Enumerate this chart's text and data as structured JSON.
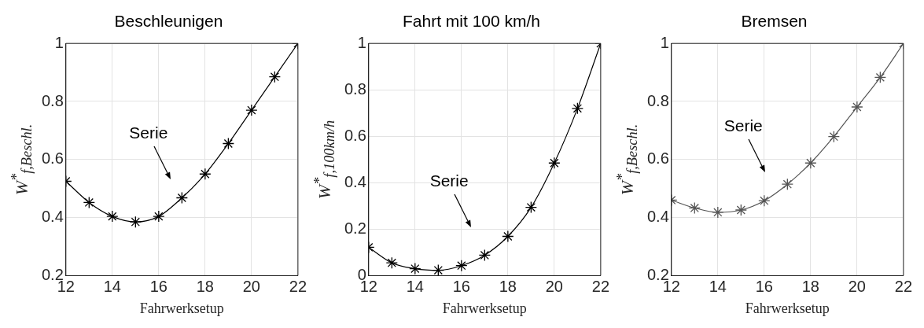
{
  "chart_data": [
    {
      "type": "line",
      "title": "Beschleunigen",
      "xlabel": "Fahrwerksetup",
      "ylabel": "W$^{*}$$_{f,Beschl.}$",
      "x": [
        12,
        13,
        14,
        15,
        16,
        17,
        18,
        19,
        20,
        21,
        22
      ],
      "series": [
        {
          "color": "#000000",
          "values": [
            0.525,
            0.452,
            0.404,
            0.385,
            0.404,
            0.468,
            0.55,
            0.655,
            0.77,
            0.885,
            1
          ]
        }
      ],
      "xlim": [
        12,
        22
      ],
      "xticks": [
        12,
        14,
        16,
        18,
        20,
        22
      ],
      "ylim": [
        0.2,
        1
      ],
      "yticks": [
        0.2,
        0.4,
        0.6,
        0.8,
        1
      ],
      "grid": true,
      "marker": "cross",
      "line_style": "solid",
      "annotations": [
        "Serie"
      ]
    },
    {
      "type": "line",
      "title": "Fahrt mit 100 km/h",
      "xlabel": "Fahrwerksetup",
      "ylabel": "W$^{*}$$_{f,100km/h}$",
      "x": [
        12,
        13,
        14,
        15,
        16,
        17,
        18,
        19,
        20,
        21,
        22
      ],
      "series": [
        {
          "color": "#000000",
          "values": [
            0.122,
            0.055,
            0.03,
            0.023,
            0.043,
            0.088,
            0.169,
            0.294,
            0.485,
            0.72,
            1
          ]
        }
      ],
      "xlim": [
        12,
        22
      ],
      "xticks": [
        12,
        14,
        16,
        18,
        20,
        22
      ],
      "ylim": [
        0,
        1
      ],
      "yticks": [
        0,
        0.2,
        0.4,
        0.6,
        0.8,
        1
      ],
      "grid": true,
      "marker": "cross",
      "line_style": "solid",
      "annotations": [
        "Serie"
      ]
    },
    {
      "type": "line",
      "title": "Bremsen",
      "xlabel": "Fahrwerksetup",
      "ylabel": "W$^{*}$$_{f,Beschl.}$",
      "x": [
        12,
        13,
        14,
        15,
        16,
        17,
        18,
        19,
        20,
        21,
        22
      ],
      "series": [
        {
          "color": "#555555",
          "values": [
            0.46,
            0.433,
            0.418,
            0.426,
            0.458,
            0.515,
            0.588,
            0.679,
            0.781,
            0.883,
            1
          ]
        }
      ],
      "xlim": [
        12,
        22
      ],
      "xticks": [
        12,
        14,
        16,
        18,
        20,
        22
      ],
      "ylim": [
        0.2,
        1
      ],
      "yticks": [
        0.2,
        0.4,
        0.6,
        0.8,
        1
      ],
      "grid": true,
      "marker": "cross",
      "line_style": "solid",
      "annotations": [
        "Serie"
      ]
    }
  ]
}
